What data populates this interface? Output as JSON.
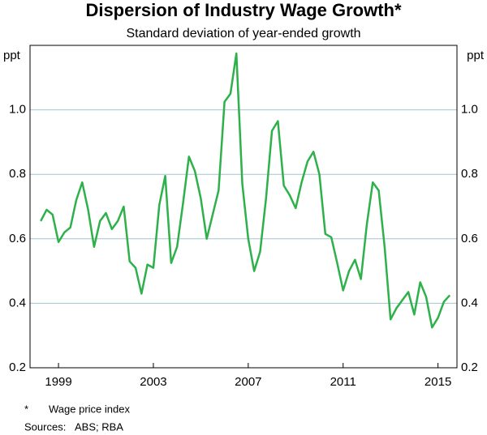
{
  "chart_data": {
    "type": "line",
    "title": "Dispersion of Industry Wage Growth*",
    "subtitle": "Standard deviation of year-ended growth",
    "y_unit": "ppt",
    "x": [
      1998.75,
      1999,
      1999.25,
      1999.5,
      1999.75,
      2000,
      2000.25,
      2000.5,
      2000.75,
      2001,
      2001.25,
      2001.5,
      2001.75,
      2002,
      2002.25,
      2002.5,
      2002.75,
      2003,
      2003.25,
      2003.5,
      2003.75,
      2004,
      2004.25,
      2004.5,
      2004.75,
      2005,
      2005.25,
      2005.5,
      2005.75,
      2006,
      2006.25,
      2006.5,
      2006.75,
      2007,
      2007.25,
      2007.5,
      2007.75,
      2008,
      2008.25,
      2008.5,
      2008.75,
      2009,
      2009.25,
      2009.5,
      2009.75,
      2010,
      2010.25,
      2010.5,
      2010.75,
      2011,
      2011.25,
      2011.5,
      2011.75,
      2012,
      2012.25,
      2012.5,
      2012.75,
      2013,
      2013.25,
      2013.5,
      2013.75,
      2014,
      2014.25,
      2014.5,
      2014.75,
      2015,
      2015.25,
      2015.5,
      2015.75,
      2016
    ],
    "series": [
      {
        "color": "#2eb04a",
        "values": [
          0.655,
          0.69,
          0.675,
          0.59,
          0.62,
          0.635,
          0.72,
          0.775,
          0.69,
          0.575,
          0.655,
          0.68,
          0.63,
          0.655,
          0.7,
          0.53,
          0.51,
          0.43,
          0.52,
          0.51,
          0.705,
          0.795,
          0.525,
          0.575,
          0.71,
          0.855,
          0.81,
          0.725,
          0.6,
          0.675,
          0.75,
          1.025,
          1.05,
          1.175,
          0.77,
          0.6,
          0.5,
          0.56,
          0.725,
          0.935,
          0.965,
          0.765,
          0.735,
          0.695,
          0.775,
          0.84,
          0.87,
          0.8,
          0.615,
          0.605,
          0.525,
          0.44,
          0.5,
          0.535,
          0.475,
          0.645,
          0.775,
          0.75,
          0.575,
          0.35,
          0.385,
          0.41,
          0.435,
          0.365,
          0.465,
          0.42,
          0.325,
          0.355,
          0.405,
          0.425
        ]
      }
    ],
    "xlim": [
      1998.3,
      2016.3
    ],
    "xticks": [
      {
        "value": 1999.5,
        "label": "1999"
      },
      {
        "value": 2003.5,
        "label": "2003"
      },
      {
        "value": 2007.5,
        "label": "2007"
      },
      {
        "value": 2011.5,
        "label": "2011"
      },
      {
        "value": 2015.5,
        "label": "2015"
      }
    ],
    "ylim": [
      0.2,
      1.2
    ],
    "yticks": [
      0.2,
      0.4,
      0.6,
      0.8,
      {
        "value": 1,
        "label": "1.0"
      }
    ],
    "grid": true,
    "notes": [
      [
        "*",
        "Wage price index"
      ],
      [
        "Sources:",
        "ABS; RBA"
      ]
    ]
  }
}
